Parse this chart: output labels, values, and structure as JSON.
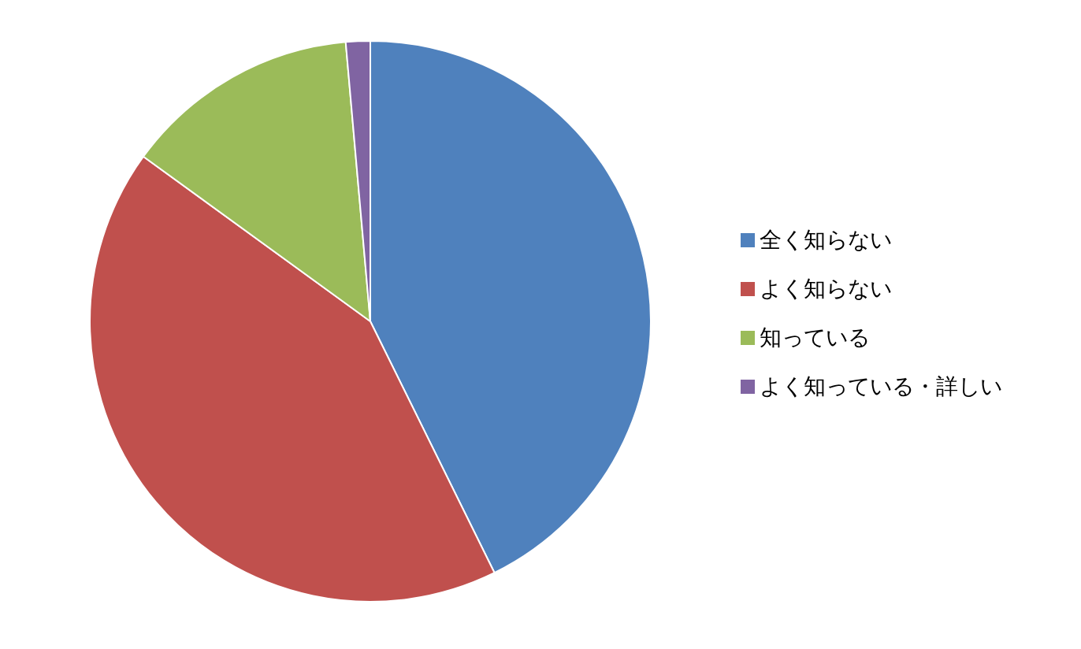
{
  "chart_data": {
    "type": "pie",
    "categories": [
      "全く知らない",
      "よく知らない",
      "知っている",
      "よく知っている・詳しい"
    ],
    "values": [
      42.7,
      42.3,
      13.6,
      1.4
    ],
    "colors": [
      "#4f81bd",
      "#c0504d",
      "#9bbb59",
      "#8064a2"
    ],
    "legend": "right"
  }
}
